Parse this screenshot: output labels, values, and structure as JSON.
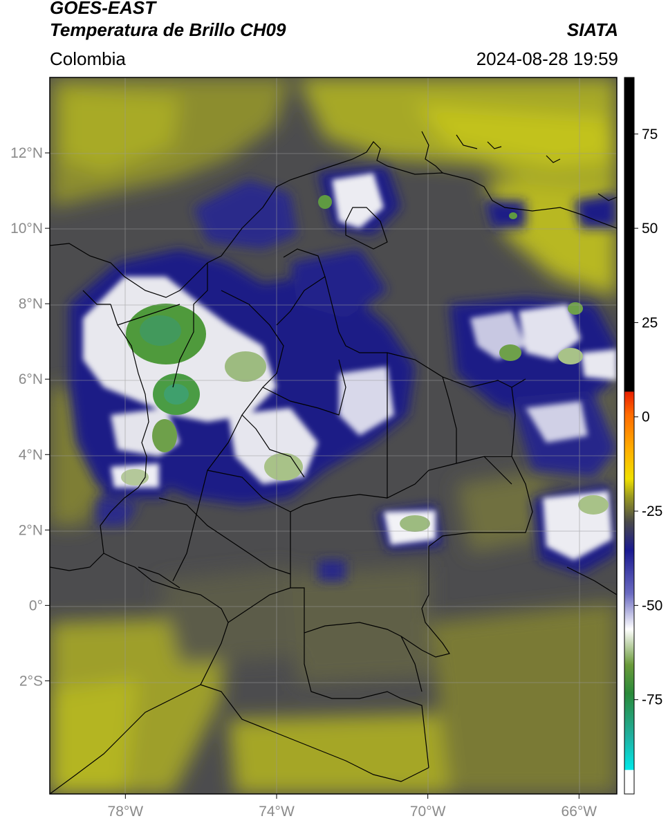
{
  "header": {
    "satellite": "GOES-EAST",
    "product": "Temperatura de Brillo CH09",
    "region": "Colombia",
    "brand": "SIATA",
    "datetime": "2024-08-28 19:59"
  },
  "axes": {
    "lon_range": [
      -80.0,
      -65.0
    ],
    "lat_range": [
      -5.0,
      14.0
    ],
    "lat_ticks": [
      {
        "value": 12,
        "label": "12°N"
      },
      {
        "value": 10,
        "label": "10°N"
      },
      {
        "value": 8,
        "label": "8°N"
      },
      {
        "value": 6,
        "label": "6°N"
      },
      {
        "value": 4,
        "label": "4°N"
      },
      {
        "value": 2,
        "label": "2°N"
      },
      {
        "value": 0,
        "label": "0°"
      },
      {
        "value": -2,
        "label": "2°S"
      }
    ],
    "lon_ticks": [
      {
        "value": -78,
        "label": "78°W"
      },
      {
        "value": -74,
        "label": "74°W"
      },
      {
        "value": -70,
        "label": "70°W"
      },
      {
        "value": -66,
        "label": "66°W"
      }
    ],
    "grid": true
  },
  "colorbar": {
    "range": [
      -100,
      90
    ],
    "ticks": [
      {
        "value": 75,
        "label": "75"
      },
      {
        "value": 50,
        "label": "50"
      },
      {
        "value": 25,
        "label": "25"
      },
      {
        "value": 0,
        "label": "0"
      },
      {
        "value": -25,
        "label": "-25"
      },
      {
        "value": -50,
        "label": "-50"
      },
      {
        "value": -75,
        "label": "-75"
      }
    ]
  },
  "colors": {
    "background_warm": "#4c4c4e",
    "haze_yellow": "#b5b624",
    "olive": "#8a8a2c",
    "cold_navy": "#1c1c84",
    "coldest_white": "#f2f2f2",
    "deep_green": "#4a9a3a",
    "border_line": "#000000",
    "grid_line": "#9a9a9a"
  }
}
